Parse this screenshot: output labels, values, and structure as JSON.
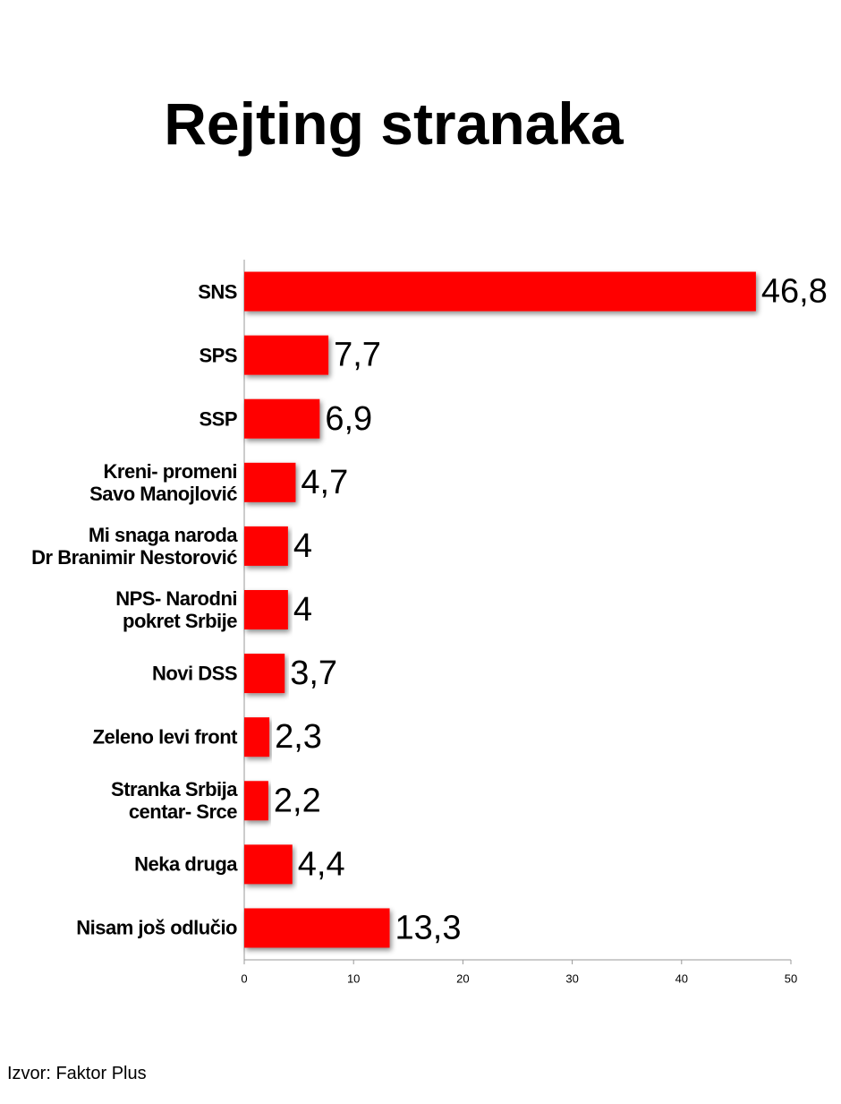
{
  "chart_data": {
    "type": "bar",
    "orientation": "horizontal",
    "title": "Rejting stranaka",
    "categories": [
      "SNS",
      "SPS",
      "SSP",
      "Kreni- promeni\nSavo Manojlović",
      "Mi snaga naroda\nDr Branimir Nestorović",
      "NPS- Narodni\npokret Srbije",
      "Novi DSS",
      "Zeleno levi front",
      "Stranka Srbija\ncentar- Srce",
      "Neka druga",
      "Nisam još odlučio"
    ],
    "values": [
      46.8,
      7.7,
      6.9,
      4.7,
      4,
      4,
      3.7,
      2.3,
      2.2,
      4.4,
      13.3
    ],
    "value_labels": [
      "46,8",
      "7,7",
      "6,9",
      "4,7",
      "4",
      "4",
      "3,7",
      "2,3",
      "2,2",
      "4,4",
      "13,3"
    ],
    "color": "#ff0000",
    "xlim": [
      0,
      50
    ],
    "xticks": [
      0,
      10,
      20,
      30,
      40,
      50
    ],
    "source": "Izvor: Faktor Plus"
  }
}
